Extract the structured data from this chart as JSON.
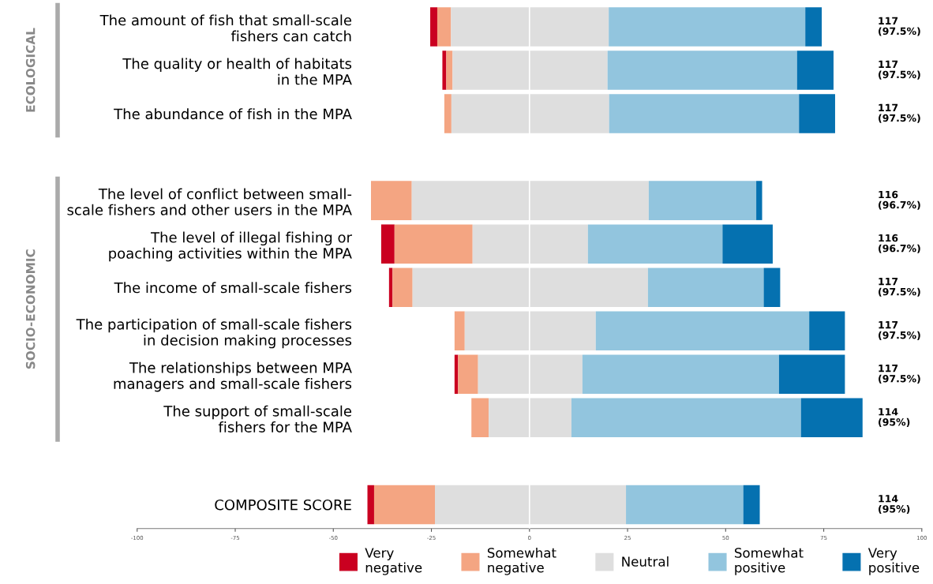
{
  "chart_data": {
    "type": "bar",
    "orientation": "horizontal",
    "categories": [
      "The amount of fish that small-scale\nfishers can catch",
      "The quality or health of habitats\nin the MPA",
      "The abundance of fish in the MPA",
      null,
      "The level of conflict between small-\nscale fishers and other users in the MPA",
      "The level of illegal fishing or\npoaching activities within the MPA",
      "The income of small-scale fishers",
      "The participation of small-scale fishers\nin decision making processes",
      "The relationships between MPA\nmanagers and small-scale fishers",
      "The support of small-scale\nfishers for the MPA",
      null,
      "COMPOSITE SCORE"
    ],
    "series": [
      {
        "name": "Very\nnegative",
        "color": "#ca0020",
        "values": [
          1.8,
          1.0,
          null,
          null,
          null,
          3.4,
          0.9,
          null,
          0.9,
          null,
          null,
          1.7
        ],
        "base": [
          -25.3,
          -22.2,
          null,
          null,
          null,
          -37.8,
          -35.8,
          null,
          -19.1,
          null,
          null,
          -41.3
        ]
      },
      {
        "name": "Somewhat\nnegative",
        "color": "#f4a582",
        "values": [
          3.5,
          1.6,
          1.8,
          null,
          10.4,
          19.9,
          5.1,
          2.6,
          5.1,
          4.4,
          null,
          15.5
        ],
        "base": [
          -23.5,
          -21.2,
          -21.7,
          null,
          -40.4,
          -34.4,
          -34.9,
          -19.1,
          -18.2,
          -14.8,
          null,
          -39.6
        ]
      },
      {
        "name": "Neutral",
        "color": "#dedede",
        "values": [
          40.2,
          39.5,
          40.2,
          null,
          60.4,
          29.4,
          60.0,
          33.4,
          26.6,
          21.1,
          null,
          48.7
        ],
        "base": [
          -20.0,
          -19.6,
          -19.9,
          null,
          -30.0,
          -14.5,
          -29.8,
          -16.5,
          -13.1,
          -10.4,
          null,
          -24.1
        ]
      },
      {
        "name": "Somewhat\npositive",
        "color": "#92c5de",
        "values": [
          50.1,
          48.3,
          48.4,
          null,
          27.4,
          34.3,
          29.5,
          54.4,
          50.1,
          58.5,
          null,
          29.9
        ],
        "base": [
          20.2,
          19.9,
          20.3,
          null,
          30.4,
          14.9,
          30.2,
          16.9,
          13.5,
          10.7,
          null,
          24.6
        ]
      },
      {
        "name": "Very\npositive",
        "color": "#0571b0",
        "values": [
          4.2,
          9.3,
          9.2,
          null,
          1.5,
          12.8,
          4.2,
          9.1,
          16.8,
          15.7,
          null,
          4.2
        ],
        "base": [
          70.3,
          68.2,
          68.7,
          null,
          57.8,
          49.2,
          59.7,
          71.3,
          63.6,
          69.2,
          null,
          54.5
        ]
      }
    ],
    "xlim": [
      -100,
      100
    ],
    "xticks": [
      -100,
      -75,
      -50,
      -25,
      0,
      25,
      50,
      75,
      100
    ],
    "ref_lines": [
      {
        "axis": "x",
        "value": 0,
        "color": "#ffffff"
      }
    ],
    "annotations": [
      "ECOLOGICAL",
      "SOCIO-ECONOMIC",
      "117\n(97.5%)",
      "117\n(97.5%)",
      "117\n(97.5%)",
      "116\n(96.7%)",
      "116\n(96.7%)",
      "117\n(97.5%)",
      "117\n(97.5%)",
      "117\n(97.5%)",
      "114\n(95%)",
      "114\n(95%)"
    ],
    "legend": "bottom",
    "grid": false
  }
}
